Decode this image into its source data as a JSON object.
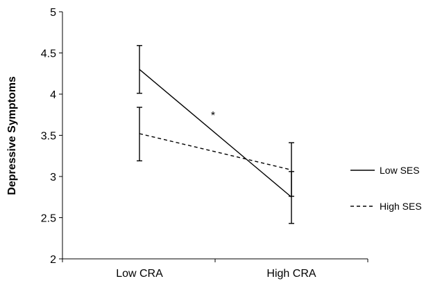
{
  "chart_data": {
    "type": "line",
    "title": "",
    "xlabel": "",
    "ylabel": "Depressive Symptoms",
    "categories": [
      "Low CRA",
      "High CRA"
    ],
    "ylim": [
      2,
      5
    ],
    "yticks": [
      "2",
      "2.5",
      "3",
      "3.5",
      "4",
      "4.5",
      "5"
    ],
    "grid": false,
    "legend_position": "right",
    "series": [
      {
        "name": "Low SES",
        "line_style": "solid",
        "color": "#000000",
        "values": [
          4.3,
          2.75
        ],
        "error_bars": [
          [
            4.01,
            4.59
          ],
          [
            2.43,
            3.06
          ]
        ]
      },
      {
        "name": "High SES",
        "line_style": "dashed",
        "color": "#000000",
        "values": [
          3.52,
          3.08
        ],
        "error_bars": [
          [
            3.19,
            3.84
          ],
          [
            2.76,
            3.41
          ]
        ]
      }
    ],
    "annotations": [
      {
        "text": "*",
        "x_between": [
          "Low CRA",
          "High CRA"
        ],
        "y": 3.75
      }
    ]
  }
}
